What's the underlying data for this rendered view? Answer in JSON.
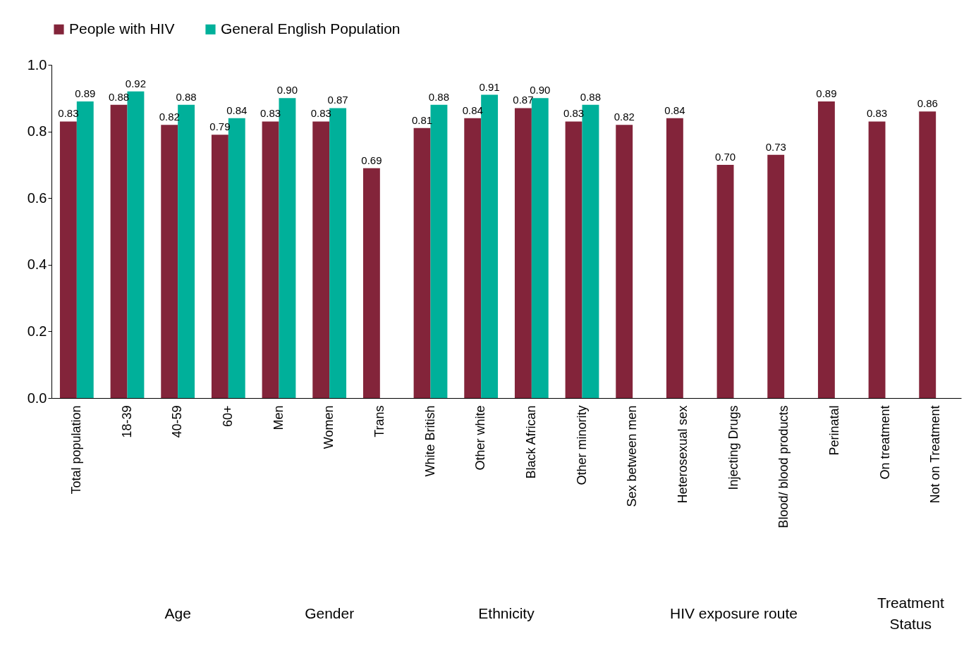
{
  "chart_data": {
    "type": "bar",
    "categories": [
      "Total population",
      "18-39",
      "40-59",
      "60+",
      "Men",
      "Women",
      "Trans",
      "White British",
      "Other white",
      "Black African",
      "Other minority",
      "Sex between men",
      "Heterosexual sex",
      "Injecting Drugs",
      "Blood/ blood products",
      "Perinatal",
      "On treatment",
      "Not on Treatment"
    ],
    "series": [
      {
        "name": "People with HIV",
        "color": "#83243a",
        "values": [
          0.83,
          0.88,
          0.82,
          0.79,
          0.83,
          0.83,
          0.69,
          0.81,
          0.84,
          0.87,
          0.83,
          0.82,
          0.84,
          0.7,
          0.73,
          0.89,
          0.83,
          0.86
        ],
        "value_labels": [
          "0.83",
          "0.88",
          "0.82",
          "0.79",
          "0.83",
          "0.83",
          "0.69",
          "0.81",
          "0.84",
          "0.87",
          "0.83",
          "0.82",
          "0.84",
          "0.70",
          "0.73",
          "0.89",
          "0.83",
          "0.86"
        ]
      },
      {
        "name": "General English Population",
        "color": "#00b09a",
        "values": [
          0.89,
          0.92,
          0.88,
          0.84,
          0.9,
          0.87,
          null,
          0.88,
          0.91,
          0.9,
          0.88,
          null,
          null,
          null,
          null,
          null,
          null,
          null
        ],
        "value_labels": [
          "0.89",
          "0.92",
          "0.88",
          "0.84",
          "0.90",
          "0.87",
          null,
          "0.88",
          "0.91",
          "0.90",
          "0.88",
          null,
          null,
          null,
          null,
          null,
          null,
          null
        ]
      }
    ],
    "ylim": [
      0,
      1
    ],
    "yticks": [
      {
        "value": 0,
        "label": "0.0"
      },
      {
        "value": 0.2,
        "label": "0.2"
      },
      {
        "value": 0.4,
        "label": "0.4"
      },
      {
        "value": 0.6,
        "label": "0.6"
      },
      {
        "value": 0.8,
        "label": "0.8"
      },
      {
        "value": 1,
        "label": "1.0"
      }
    ],
    "legend": "top",
    "annotations": [
      "Age",
      "Gender",
      "Ethnicity",
      "HIV exposure route",
      "Treatment Status"
    ]
  }
}
